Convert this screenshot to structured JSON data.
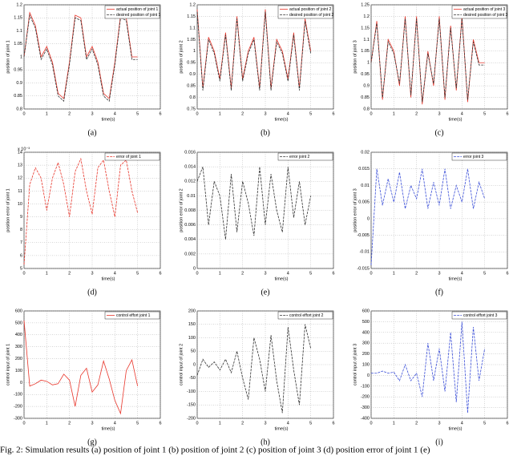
{
  "chart_data": [
    {
      "type": "line",
      "label": "(a)",
      "xlabel": "time(s)",
      "ylabel": "position of joint 1",
      "x": [
        0,
        0.25,
        0.5,
        0.75,
        1,
        1.25,
        1.5,
        1.75,
        2,
        2.25,
        2.5,
        2.75,
        3,
        3.25,
        3.5,
        3.75,
        4,
        4.25,
        4.5,
        4.75,
        5
      ],
      "xlim": [
        0,
        6
      ],
      "ylim": [
        0.8,
        1.2
      ],
      "xticks": [
        0,
        1,
        2,
        3,
        4,
        5,
        6
      ],
      "yticks": [
        0.8,
        0.85,
        0.9,
        0.95,
        1,
        1.05,
        1.1,
        1.15,
        1.2
      ],
      "grid": true,
      "legend": "upper right",
      "series": [
        {
          "name": "actual position of joint 1",
          "color": "#e8352a",
          "dash": false,
          "values": [
            1.0,
            1.17,
            1.12,
            1.0,
            1.04,
            0.98,
            0.86,
            0.84,
            0.98,
            1.16,
            1.15,
            1.0,
            1.04,
            0.98,
            0.86,
            0.84,
            0.98,
            1.16,
            1.15,
            1.0,
            1.0
          ]
        },
        {
          "name": "desired position of joint 1",
          "color": "#333333",
          "dash": true,
          "values": [
            1.0,
            1.16,
            1.11,
            0.99,
            1.03,
            0.97,
            0.85,
            0.83,
            0.97,
            1.15,
            1.14,
            0.99,
            1.03,
            0.97,
            0.85,
            0.83,
            0.97,
            1.15,
            1.14,
            0.99,
            0.99
          ]
        }
      ]
    },
    {
      "type": "line",
      "label": "(b)",
      "xlabel": "time(s)",
      "ylabel": "position of joint 2",
      "x": [
        0,
        0.25,
        0.5,
        0.75,
        1,
        1.25,
        1.5,
        1.75,
        2,
        2.25,
        2.5,
        2.75,
        3,
        3.25,
        3.5,
        3.75,
        4,
        4.25,
        4.5,
        4.75,
        5
      ],
      "xlim": [
        0,
        6
      ],
      "ylim": [
        0.75,
        1.2
      ],
      "xticks": [
        0,
        1,
        2,
        3,
        4,
        5,
        6
      ],
      "yticks": [
        0.75,
        0.8,
        0.85,
        0.9,
        0.95,
        1,
        1.05,
        1.1,
        1.15,
        1.2
      ],
      "grid": true,
      "legend": "upper right",
      "series": [
        {
          "name": "actual position of joint 2",
          "color": "#e8352a",
          "dash": false,
          "values": [
            1.18,
            0.84,
            1.06,
            1.0,
            0.88,
            1.08,
            0.84,
            1.15,
            0.88,
            1.0,
            1.06,
            0.84,
            1.18,
            0.84,
            1.05,
            1.0,
            0.88,
            1.08,
            0.84,
            1.14,
            1.0
          ]
        },
        {
          "name": "desired position of joint 2",
          "color": "#333333",
          "dash": true,
          "values": [
            1.17,
            0.83,
            1.05,
            0.99,
            0.87,
            1.07,
            0.83,
            1.14,
            0.87,
            0.99,
            1.05,
            0.83,
            1.17,
            0.83,
            1.04,
            0.99,
            0.87,
            1.07,
            0.83,
            1.13,
            0.99
          ]
        }
      ]
    },
    {
      "type": "line",
      "label": "(c)",
      "xlabel": "time(s)",
      "ylabel": "position of joint 3",
      "x": [
        0,
        0.25,
        0.5,
        0.75,
        1,
        1.25,
        1.5,
        1.75,
        2,
        2.25,
        2.5,
        2.75,
        3,
        3.25,
        3.5,
        3.75,
        4,
        4.25,
        4.5,
        4.75,
        5
      ],
      "xlim": [
        0,
        6
      ],
      "ylim": [
        0.8,
        1.25
      ],
      "xticks": [
        0,
        1,
        2,
        3,
        4,
        5,
        6
      ],
      "yticks": [
        0.8,
        0.85,
        0.9,
        0.95,
        1,
        1.05,
        1.1,
        1.15,
        1.2,
        1.25
      ],
      "grid": true,
      "legend": "upper right",
      "series": [
        {
          "name": "actual position of joint 3",
          "color": "#e8352a",
          "dash": false,
          "values": [
            1.0,
            1.18,
            0.84,
            1.1,
            1.05,
            0.9,
            1.2,
            0.85,
            1.2,
            0.82,
            1.05,
            0.9,
            1.2,
            0.84,
            1.16,
            0.88,
            1.2,
            0.83,
            1.1,
            1.0,
            1.0
          ]
        },
        {
          "name": "desired position of joint 3",
          "color": "#333333",
          "dash": true,
          "values": [
            1.0,
            1.17,
            0.85,
            1.09,
            1.04,
            0.91,
            1.19,
            0.86,
            1.19,
            0.83,
            1.04,
            0.91,
            1.19,
            0.85,
            1.15,
            0.89,
            1.19,
            0.84,
            1.09,
            0.99,
            0.99
          ]
        }
      ]
    },
    {
      "type": "line",
      "label": "(d)",
      "xlabel": "time(s)",
      "ylabel": "position error of joint 1",
      "multiplier": "x 10⁻³",
      "x": [
        0,
        0.25,
        0.5,
        0.75,
        1,
        1.25,
        1.5,
        1.75,
        2,
        2.25,
        2.5,
        2.75,
        3,
        3.25,
        3.5,
        3.75,
        4,
        4.25,
        4.5,
        4.75,
        5
      ],
      "xlim": [
        0,
        6
      ],
      "ylim": [
        5,
        14
      ],
      "xticks": [
        0,
        1,
        2,
        3,
        4,
        5,
        6
      ],
      "yticks": [
        5,
        6,
        7,
        8,
        9,
        10,
        11,
        12,
        13,
        14
      ],
      "grid": true,
      "legend": "upper right",
      "series": [
        {
          "name": "error of joint 1",
          "color": "#e8352a",
          "dash": true,
          "values": [
            5.3,
            11.5,
            12.8,
            12.0,
            9.5,
            12.0,
            13.2,
            11.5,
            9.0,
            12.5,
            13.5,
            11.0,
            9.2,
            12.8,
            13.4,
            11.0,
            9.0,
            13.0,
            13.4,
            11.0,
            9.3
          ]
        }
      ]
    },
    {
      "type": "line",
      "label": "(e)",
      "xlabel": "time(s)",
      "ylabel": "position error of joint 2",
      "x": [
        0,
        0.25,
        0.5,
        0.75,
        1,
        1.25,
        1.5,
        1.75,
        2,
        2.25,
        2.5,
        2.75,
        3,
        3.25,
        3.5,
        3.75,
        4,
        4.25,
        4.5,
        4.75,
        5
      ],
      "xlim": [
        0,
        6
      ],
      "ylim": [
        0,
        0.016
      ],
      "xticks": [
        0,
        1,
        2,
        3,
        4,
        5,
        6
      ],
      "yticks": [
        0,
        0.002,
        0.004,
        0.006,
        0.008,
        0.01,
        0.012,
        0.014,
        0.016
      ],
      "grid": true,
      "legend": "upper right",
      "series": [
        {
          "name": "error joint 2",
          "color": "#333333",
          "dash": true,
          "values": [
            0.012,
            0.014,
            0.006,
            0.012,
            0.01,
            0.004,
            0.013,
            0.005,
            0.012,
            0.009,
            0.0045,
            0.014,
            0.006,
            0.013,
            0.008,
            0.005,
            0.014,
            0.007,
            0.012,
            0.006,
            0.01
          ]
        }
      ]
    },
    {
      "type": "line",
      "label": "(f)",
      "xlabel": "time(s)",
      "ylabel": "position error of joint 3",
      "x": [
        0,
        0.25,
        0.5,
        0.75,
        1,
        1.25,
        1.5,
        1.75,
        2,
        2.25,
        2.5,
        2.75,
        3,
        3.25,
        3.5,
        3.75,
        4,
        4.25,
        4.5,
        4.75,
        5
      ],
      "xlim": [
        0,
        6
      ],
      "ylim": [
        -0.015,
        0.02
      ],
      "xticks": [
        0,
        1,
        2,
        3,
        4,
        5,
        6
      ],
      "yticks": [
        -0.015,
        -0.01,
        -0.005,
        0,
        0.005,
        0.01,
        0.015,
        0.02
      ],
      "grid": true,
      "legend": "upper right",
      "series": [
        {
          "name": "error joint 3",
          "color": "#3b4fd8",
          "dash": true,
          "values": [
            -0.014,
            0.015,
            0.004,
            0.012,
            0.005,
            0.014,
            0.003,
            0.01,
            0.006,
            0.015,
            0.003,
            0.011,
            0.004,
            0.015,
            0.003,
            0.01,
            0.005,
            0.015,
            0.003,
            0.011,
            0.006
          ]
        }
      ]
    },
    {
      "type": "line",
      "label": "(g)",
      "xlabel": "time(s)",
      "ylabel": "control input of joint 1",
      "x": [
        0,
        0.25,
        0.5,
        0.75,
        1,
        1.25,
        1.5,
        1.75,
        2,
        2.25,
        2.5,
        2.75,
        3,
        3.25,
        3.5,
        3.75,
        4,
        4.25,
        4.5,
        4.75,
        5
      ],
      "xlim": [
        0,
        6
      ],
      "ylim": [
        -300,
        600
      ],
      "xticks": [
        0,
        1,
        2,
        3,
        4,
        5,
        6
      ],
      "yticks": [
        -300,
        -200,
        -100,
        0,
        100,
        200,
        300,
        400,
        500,
        600
      ],
      "grid": true,
      "legend": "upper right",
      "series": [
        {
          "name": "control effort joint 1",
          "color": "#e8352a",
          "dash": false,
          "values": [
            520,
            -30,
            -10,
            20,
            10,
            -20,
            -10,
            70,
            20,
            -200,
            60,
            120,
            -80,
            -20,
            180,
            30,
            -150,
            -260,
            100,
            190,
            -30
          ]
        }
      ]
    },
    {
      "type": "line",
      "label": "(h)",
      "xlabel": "time(s)",
      "ylabel": "control input of joint 2",
      "x": [
        0,
        0.25,
        0.5,
        0.75,
        1,
        1.25,
        1.5,
        1.75,
        2,
        2.25,
        2.5,
        2.75,
        3,
        3.25,
        3.5,
        3.75,
        4,
        4.25,
        4.5,
        4.75,
        5
      ],
      "xlim": [
        0,
        6
      ],
      "ylim": [
        -200,
        200
      ],
      "xticks": [
        0,
        1,
        2,
        3,
        4,
        5,
        6
      ],
      "yticks": [
        -200,
        -150,
        -100,
        -50,
        0,
        50,
        100,
        150,
        200
      ],
      "grid": true,
      "legend": "upper right",
      "series": [
        {
          "name": "control effort joint 2",
          "color": "#333333",
          "dash": true,
          "values": [
            -40,
            20,
            -10,
            10,
            -20,
            20,
            -30,
            50,
            -50,
            -130,
            100,
            20,
            -100,
            110,
            -60,
            -180,
            140,
            -20,
            -150,
            150,
            60
          ]
        }
      ]
    },
    {
      "type": "line",
      "label": "(i)",
      "xlabel": "time(s)",
      "ylabel": "control input of joint 3",
      "x": [
        0,
        0.25,
        0.5,
        0.75,
        1,
        1.25,
        1.5,
        1.75,
        2,
        2.25,
        2.5,
        2.75,
        3,
        3.25,
        3.5,
        3.75,
        4,
        4.25,
        4.5,
        4.75,
        5
      ],
      "xlim": [
        0,
        6
      ],
      "ylim": [
        -400,
        600
      ],
      "xticks": [
        0,
        1,
        2,
        3,
        4,
        5,
        6
      ],
      "yticks": [
        -400,
        -300,
        -200,
        -100,
        0,
        100,
        200,
        300,
        400,
        500,
        600
      ],
      "grid": true,
      "legend": "upper right",
      "series": [
        {
          "name": "control effort joint 3",
          "color": "#3b4fd8",
          "dash": true,
          "values": [
            20,
            20,
            40,
            20,
            30,
            -50,
            100,
            -50,
            20,
            -200,
            300,
            -50,
            250,
            -150,
            400,
            -250,
            500,
            -350,
            450,
            -50,
            250
          ]
        }
      ]
    }
  ],
  "caption": "Fig. 2: Simulation results (a) position of joint 1 (b) position of joint 2 (c) position of joint 3 (d) position error of joint 1 (e)"
}
